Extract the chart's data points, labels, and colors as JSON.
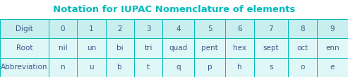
{
  "title": "Notation for IUPAC Nomenclature of elements",
  "title_color": "#00BBBB",
  "title_fontsize": 9.5,
  "col_headers": [
    "Digit",
    "0",
    "1",
    "2",
    "3",
    "4",
    "5",
    "6",
    "7",
    "8",
    "9"
  ],
  "rows": [
    [
      "Root",
      "nil",
      "un",
      "bi",
      "tri",
      "quad",
      "pent",
      "hex",
      "sept",
      "oct",
      "enn"
    ],
    [
      "Abbreviation",
      "n",
      "u",
      "b",
      "t",
      "q",
      "p",
      "h",
      "s",
      "o",
      "e"
    ]
  ],
  "header_bg": "#C8EEEE",
  "cell_bg": "#E0F7F7",
  "border_color": "#00BBBB",
  "text_color": "#3A5A8A",
  "font_size": 7.5,
  "col_widths_raw": [
    1.7,
    1.0,
    1.0,
    1.0,
    1.0,
    1.1,
    1.1,
    1.0,
    1.2,
    1.0,
    1.1
  ]
}
